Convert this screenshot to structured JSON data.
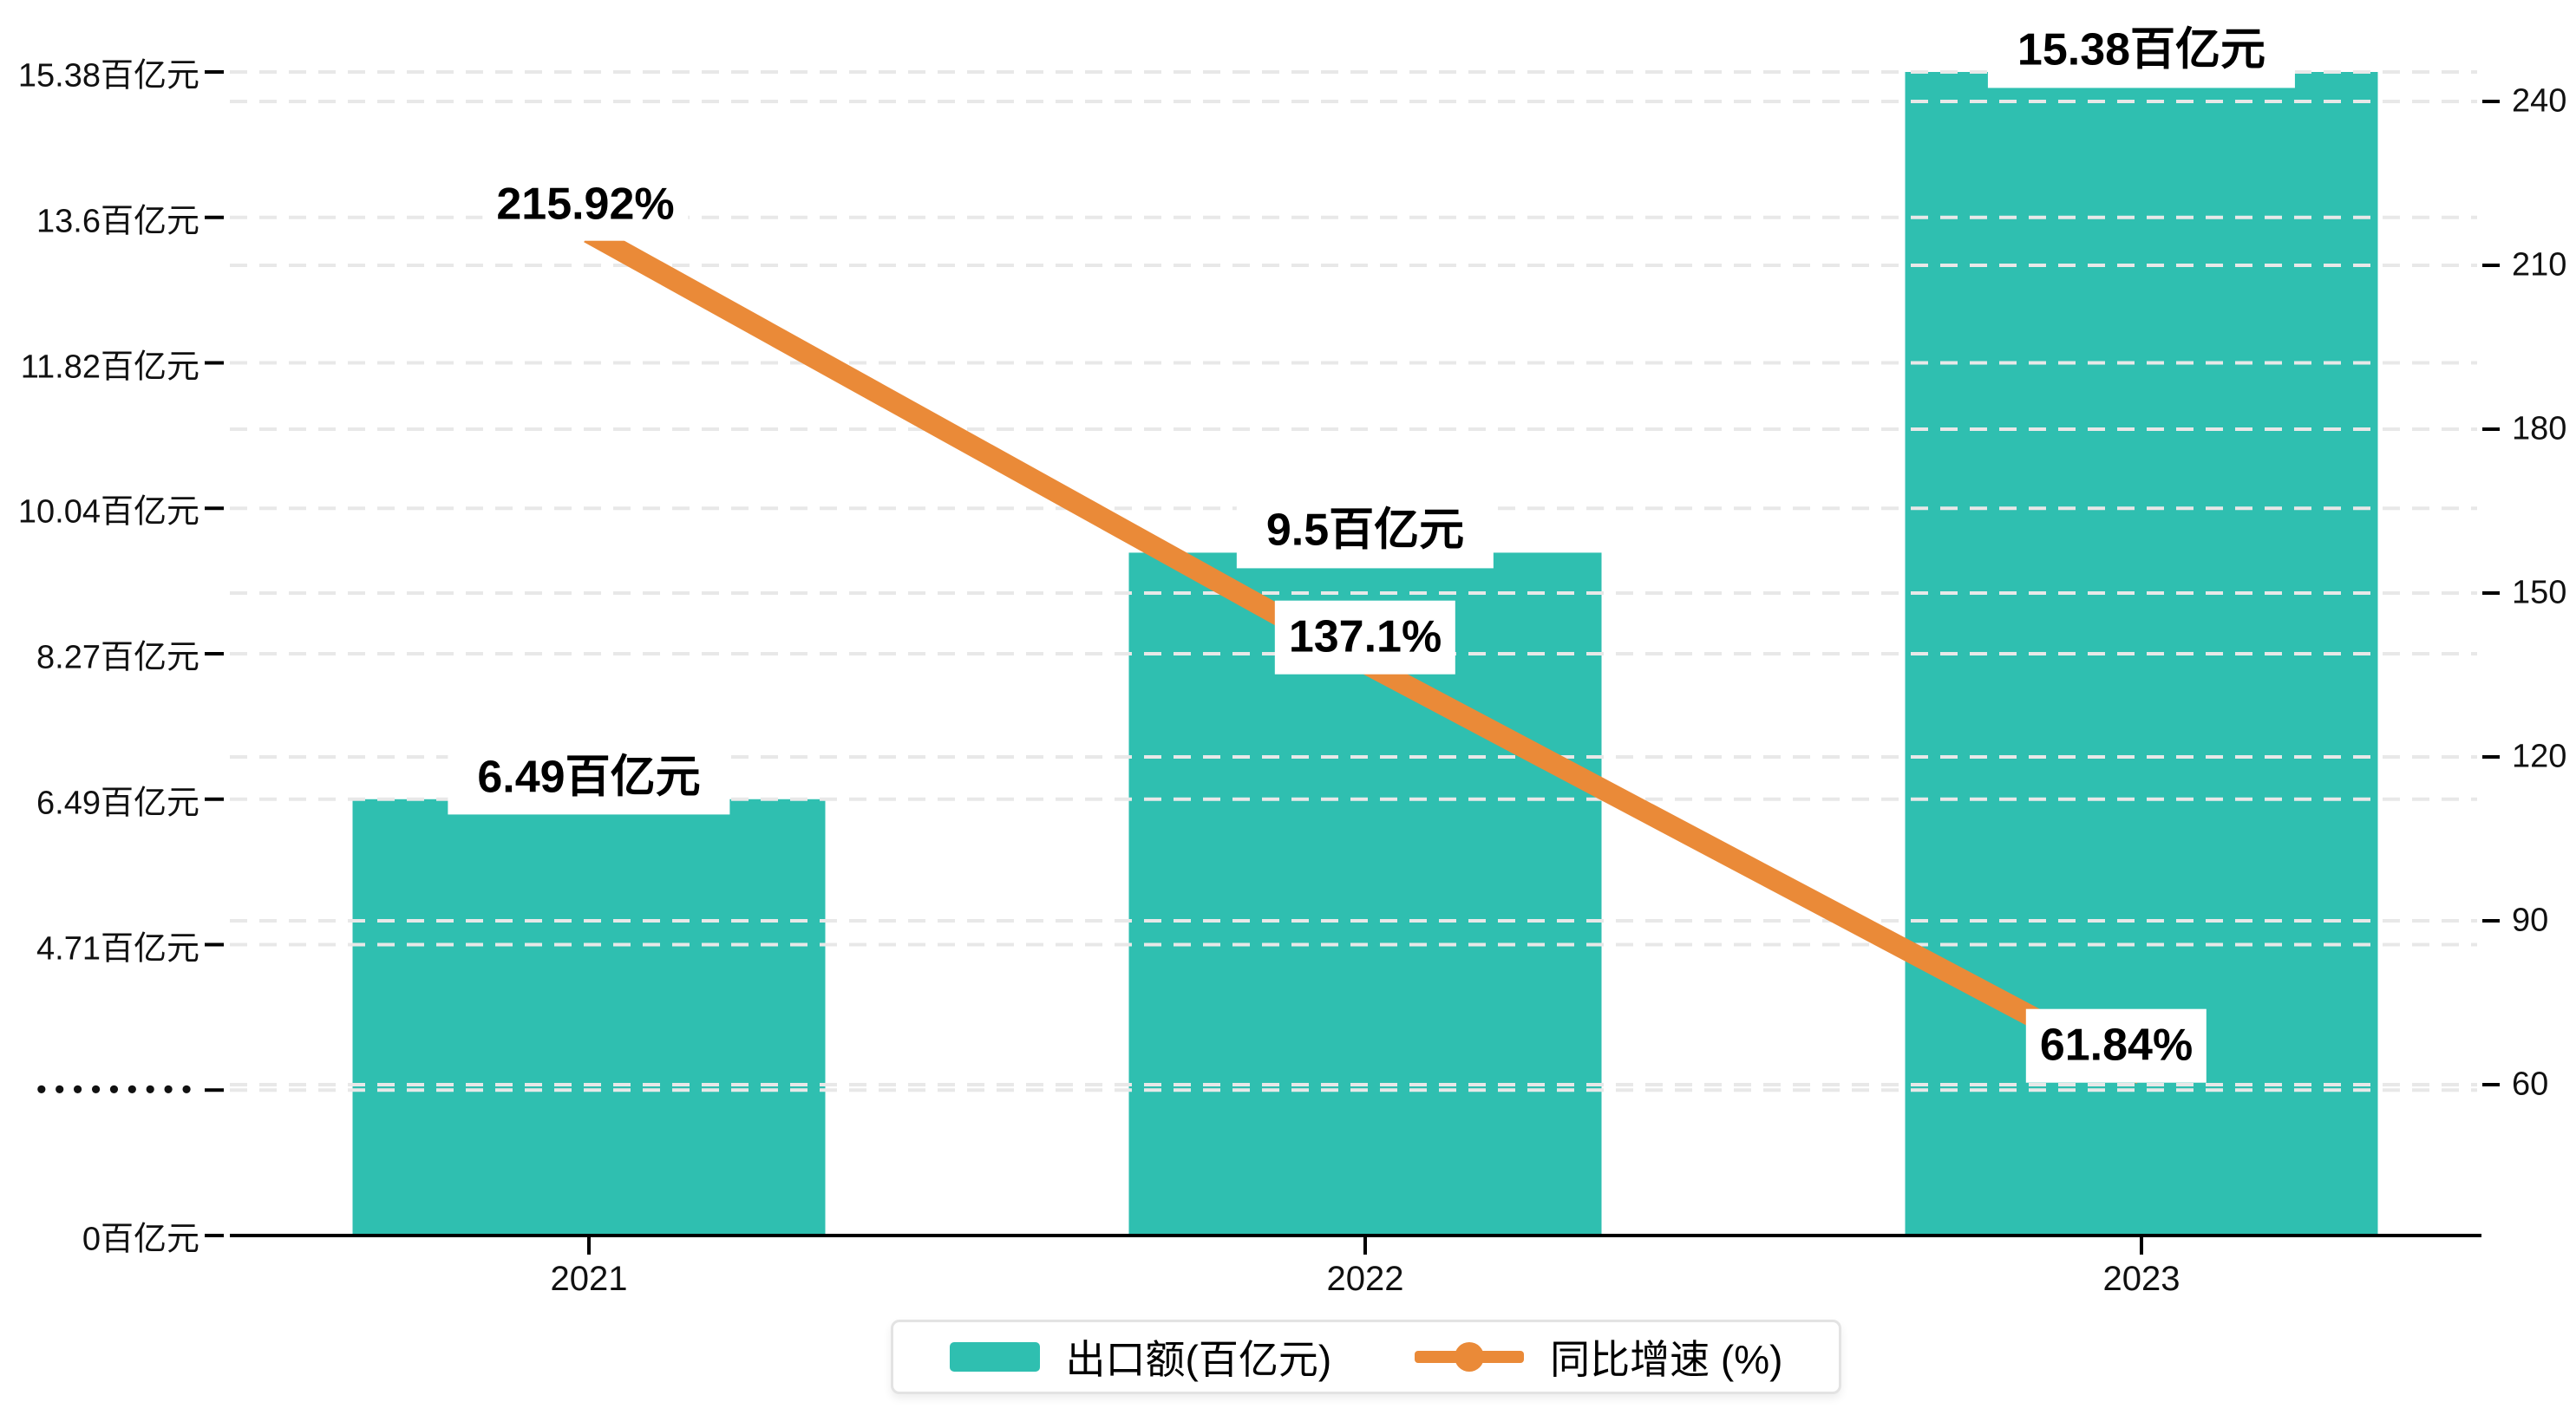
{
  "chart_data": {
    "type": "bar+line",
    "categories": [
      "2021",
      "2022",
      "2023"
    ],
    "series": [
      {
        "name": "出口额(百亿元)",
        "type": "bar",
        "color": "#2fbfb0",
        "values": [
          6.49,
          9.5,
          15.38
        ],
        "data_labels": [
          "6.49百亿元",
          "9.5百亿元",
          "15.38百亿元"
        ]
      },
      {
        "name": "同比增速 (%)",
        "type": "line",
        "color": "#ea8a38",
        "values": [
          215.92,
          137.1,
          61.84
        ],
        "data_labels": [
          "215.92%",
          "137.1%",
          "61.84%"
        ]
      }
    ],
    "left_axis": {
      "unit": "百亿元",
      "tick_labels_bottom_to_top": [
        "0百亿元",
        "•••••••••",
        "4.71百亿元",
        "6.49百亿元",
        "8.27百亿元",
        "10.04百亿元",
        "11.82百亿元",
        "13.6百亿元",
        "15.38百亿元"
      ],
      "tick_values_bottom_to_top": [
        0,
        null,
        4.71,
        6.49,
        8.27,
        10.04,
        11.82,
        13.6,
        15.38
      ],
      "has_axis_break": true
    },
    "right_axis": {
      "tick_labels_bottom_to_top": [
        "60",
        "90",
        "120",
        "150",
        "180",
        "210",
        "240"
      ],
      "min": 60,
      "max": 240,
      "step": 30
    },
    "grid": "horizontal dashed lines for both axes",
    "legend_position": "bottom-center"
  },
  "legend": {
    "items": [
      {
        "label": "出口额(百亿元)",
        "marker": "bar-swatch",
        "color": "#2fbfb0"
      },
      {
        "label": "同比增速 (%)",
        "marker": "line-dot",
        "color": "#ea8a38"
      }
    ]
  },
  "colors": {
    "bar": "#2fbfb0",
    "line": "#ea8a38",
    "gridline": "#e8e8e8",
    "axis": "#000000",
    "text": "#111111",
    "label_box_bg": "#ffffff"
  }
}
